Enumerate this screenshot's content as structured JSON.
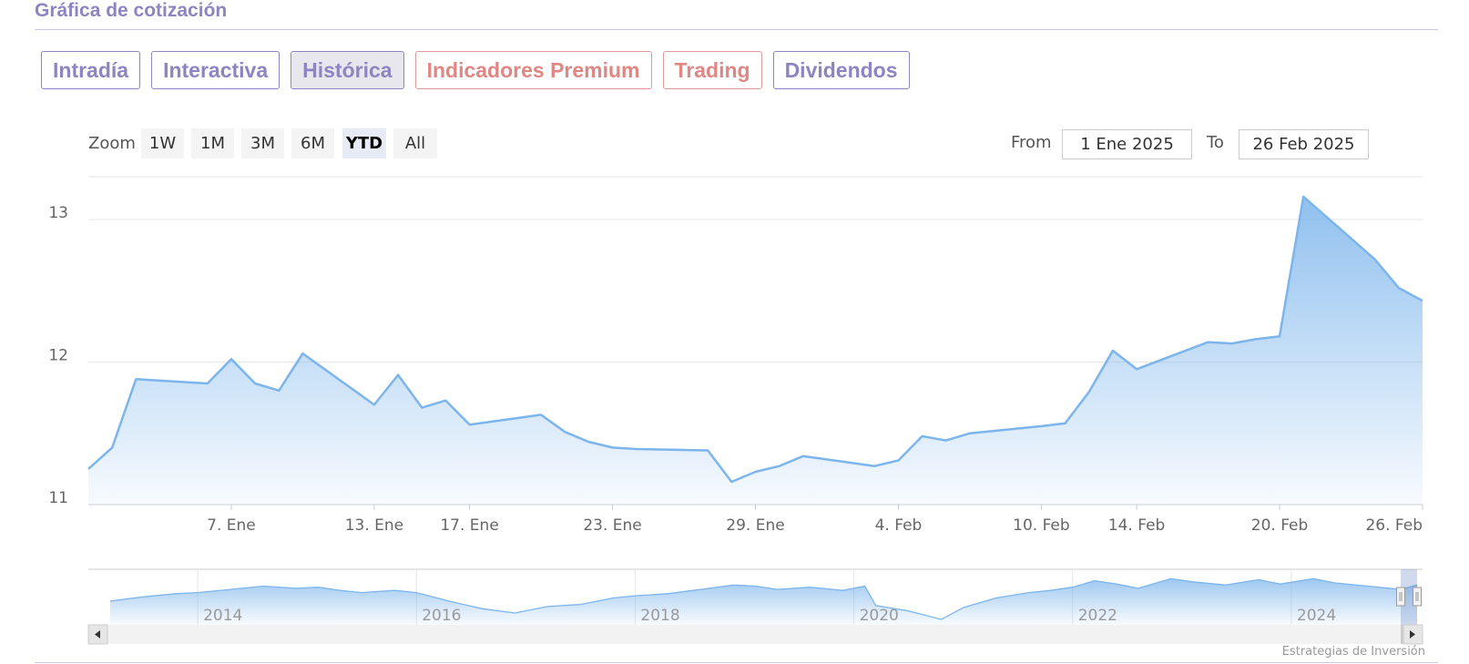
{
  "section_title": "Gráfica de cotización",
  "tabs": [
    {
      "label": "Intradía",
      "premium": false,
      "active": false
    },
    {
      "label": "Interactiva",
      "premium": false,
      "active": false
    },
    {
      "label": "Histórica",
      "premium": false,
      "active": true
    },
    {
      "label": "Indicadores Premium",
      "premium": true,
      "active": false
    },
    {
      "label": "Trading",
      "premium": true,
      "active": false
    },
    {
      "label": "Dividendos",
      "premium": false,
      "active": false
    }
  ],
  "zoom": {
    "label": "Zoom",
    "buttons": [
      "1W",
      "1M",
      "3M",
      "6M",
      "YTD",
      "All"
    ],
    "selected": "YTD"
  },
  "range": {
    "from_label": "From",
    "from_value": "1 Ene 2025",
    "to_label": "To",
    "to_value": "26 Feb 2025"
  },
  "credit": "Estrategias de Inversión",
  "colors": {
    "accent": "#8e84c2",
    "premium": "#e08683",
    "series_line": "#7cb5ec"
  },
  "chart_data": {
    "type": "area",
    "ylim": [
      11,
      13.3
    ],
    "yticks": [
      11,
      12,
      13
    ],
    "xlim": [
      1,
      57
    ],
    "x": [
      1,
      2,
      3,
      6,
      7,
      8,
      9,
      10,
      13,
      14,
      15,
      16,
      17,
      20,
      21,
      22,
      23,
      24,
      27,
      28,
      29,
      30,
      31,
      34,
      35,
      36,
      37,
      38,
      41,
      42,
      43,
      44,
      45,
      48,
      49,
      50,
      51,
      52,
      55,
      56,
      57
    ],
    "y": [
      11.25,
      11.4,
      11.88,
      11.85,
      12.02,
      11.85,
      11.8,
      12.06,
      11.7,
      11.91,
      11.68,
      11.73,
      11.56,
      11.63,
      11.51,
      11.44,
      11.4,
      11.39,
      11.38,
      11.16,
      11.23,
      11.27,
      11.34,
      11.27,
      11.31,
      11.48,
      11.45,
      11.5,
      11.55,
      11.57,
      11.79,
      12.08,
      11.95,
      12.14,
      12.13,
      12.16,
      12.18,
      13.16,
      12.72,
      12.52,
      12.43
    ],
    "xtick_labels": [
      {
        "x": 7,
        "label": "7. Ene"
      },
      {
        "x": 13,
        "label": "13. Ene"
      },
      {
        "x": 17,
        "label": "17. Ene"
      },
      {
        "x": 23,
        "label": "23. Ene"
      },
      {
        "x": 29,
        "label": "29. Ene"
      },
      {
        "x": 35,
        "label": "4. Feb"
      },
      {
        "x": 41,
        "label": "10. Feb"
      },
      {
        "x": 45,
        "label": "14. Feb"
      },
      {
        "x": 51,
        "label": "20. Feb"
      },
      {
        "x": 57,
        "label": "26. Feb"
      }
    ],
    "navigator": {
      "xlim": [
        2013,
        2025.2
      ],
      "ylim": [
        0,
        5
      ],
      "labels": [
        "2014",
        "2016",
        "2018",
        "2020",
        "2022",
        "2024"
      ],
      "points": [
        [
          2013.2,
          2.2
        ],
        [
          2013.5,
          2.6
        ],
        [
          2013.8,
          2.9
        ],
        [
          2014.0,
          3.0
        ],
        [
          2014.3,
          3.3
        ],
        [
          2014.6,
          3.6
        ],
        [
          2014.9,
          3.4
        ],
        [
          2015.1,
          3.5
        ],
        [
          2015.3,
          3.2
        ],
        [
          2015.5,
          3.0
        ],
        [
          2015.8,
          3.2
        ],
        [
          2016.0,
          3.0
        ],
        [
          2016.3,
          2.2
        ],
        [
          2016.6,
          1.5
        ],
        [
          2016.9,
          1.1
        ],
        [
          2017.2,
          1.7
        ],
        [
          2017.5,
          1.9
        ],
        [
          2017.8,
          2.5
        ],
        [
          2018.0,
          2.7
        ],
        [
          2018.3,
          2.9
        ],
        [
          2018.6,
          3.3
        ],
        [
          2018.9,
          3.7
        ],
        [
          2019.1,
          3.6
        ],
        [
          2019.3,
          3.3
        ],
        [
          2019.6,
          3.5
        ],
        [
          2019.9,
          3.2
        ],
        [
          2020.1,
          3.6
        ],
        [
          2020.2,
          1.8
        ],
        [
          2020.5,
          1.3
        ],
        [
          2020.8,
          0.5
        ],
        [
          2021.0,
          1.6
        ],
        [
          2021.3,
          2.5
        ],
        [
          2021.6,
          3.0
        ],
        [
          2021.8,
          3.2
        ],
        [
          2022.0,
          3.5
        ],
        [
          2022.2,
          4.1
        ],
        [
          2022.4,
          3.8
        ],
        [
          2022.6,
          3.4
        ],
        [
          2022.9,
          4.3
        ],
        [
          2023.1,
          4.0
        ],
        [
          2023.4,
          3.7
        ],
        [
          2023.7,
          4.2
        ],
        [
          2023.9,
          3.8
        ],
        [
          2024.2,
          4.3
        ],
        [
          2024.4,
          3.9
        ],
        [
          2024.7,
          3.6
        ],
        [
          2025.0,
          3.3
        ],
        [
          2025.15,
          3.7
        ]
      ],
      "selection": [
        2025.0,
        2025.15
      ]
    }
  }
}
